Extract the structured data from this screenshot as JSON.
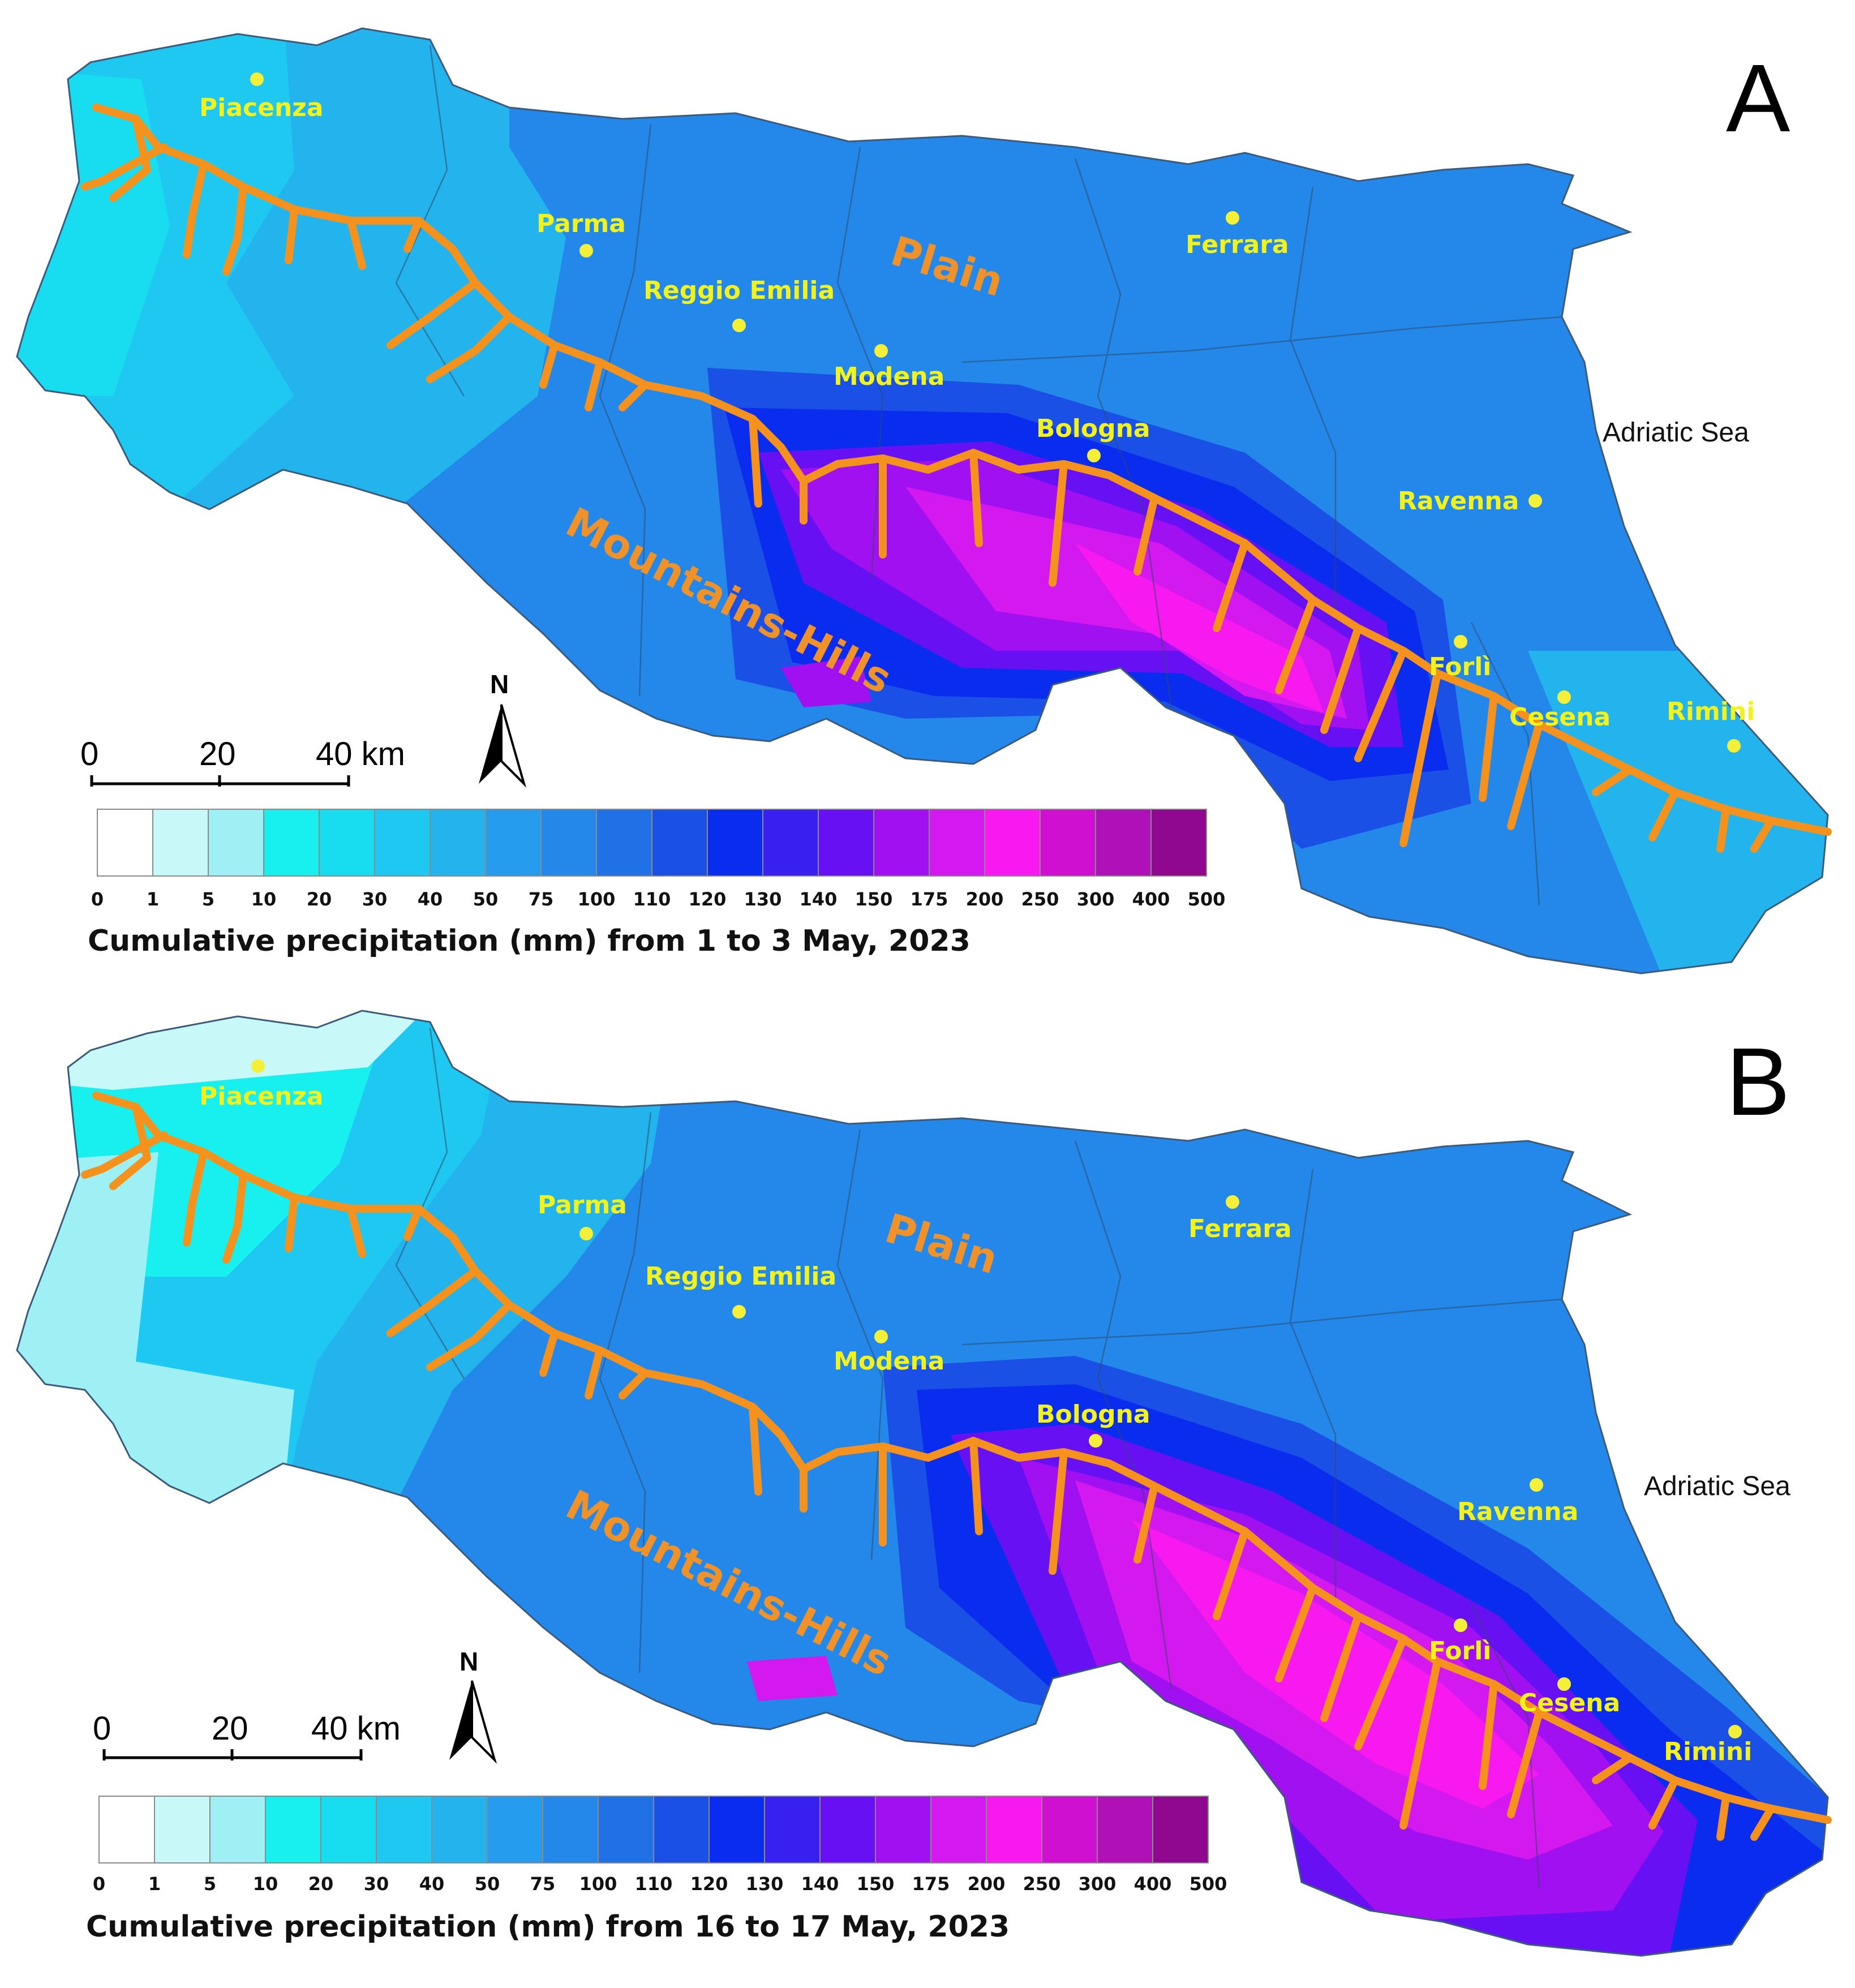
{
  "panels": [
    {
      "letter": "A",
      "caption": "Cumulative precipitation (mm) from 1 to 3 May, 2023",
      "cities": {
        "piacenza": "Piacenza",
        "parma": "Parma",
        "reggio": "Reggio Emilia",
        "modena": "Modena",
        "bologna": "Bologna",
        "ferrara": "Ferrara",
        "ravenna": "Ravenna",
        "forli": "Forlì",
        "cesena": "Cesena",
        "rimini": "Rimini"
      },
      "regions": {
        "plain": "Plain",
        "mountains": "Mountains-Hills"
      },
      "sea": "Adriatic Sea",
      "scale": {
        "t0": "0",
        "t20": "20",
        "t40": "40 km"
      },
      "north": "N"
    },
    {
      "letter": "B",
      "caption": "Cumulative precipitation (mm) from 16 to 17 May, 2023",
      "cities": {
        "piacenza": "Piacenza",
        "parma": "Parma",
        "reggio": "Reggio Emilia",
        "modena": "Modena",
        "bologna": "Bologna",
        "ferrara": "Ferrara",
        "ravenna": "Ravenna",
        "forli": "Forlì",
        "cesena": "Cesena",
        "rimini": "Rimini"
      },
      "regions": {
        "plain": "Plain",
        "mountains": "Mountains-Hills"
      },
      "sea": "Adriatic Sea",
      "scale": {
        "t0": "0",
        "t20": "20",
        "t40": "40 km"
      },
      "north": "N"
    }
  ],
  "legend": {
    "ticks": [
      "0",
      "1",
      "5",
      "10",
      "20",
      "30",
      "40",
      "50",
      "75",
      "100",
      "110",
      "120",
      "130",
      "140",
      "150",
      "175",
      "200",
      "250",
      "300",
      "400",
      "500"
    ],
    "colors": [
      "#ffffff",
      "#c8f8f8",
      "#9ef0f4",
      "#18f0f0",
      "#18dcf0",
      "#1ec8f0",
      "#23b4ee",
      "#259ced",
      "#2488ea",
      "#2070e6",
      "#1a50e6",
      "#0a2cee",
      "#3820f0",
      "#6810f4",
      "#a010f0",
      "#d418f0",
      "#f818f0",
      "#d010d0",
      "#b010b8",
      "#900890"
    ]
  },
  "colors": {
    "river": "#f5921e",
    "city_dot": "#f4f03a",
    "city_label": "#f2f21c",
    "region_label": "#f0922a"
  }
}
